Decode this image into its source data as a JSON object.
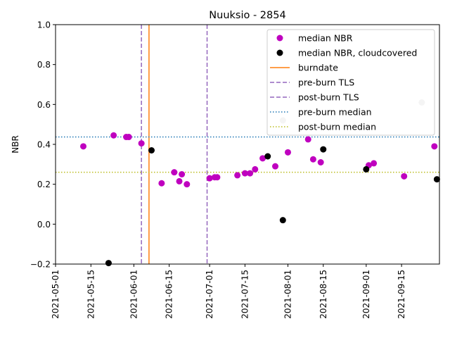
{
  "chart_data": {
    "type": "scatter",
    "title": "Nuuksio - 2854",
    "xlabel": "",
    "ylabel": "NBR",
    "xlim": [
      "2021-05-01",
      "2021-09-30"
    ],
    "ylim": [
      -0.2,
      1.0
    ],
    "x_ticks": [
      "2021-05-01",
      "2021-05-15",
      "2021-06-01",
      "2021-06-15",
      "2021-07-01",
      "2021-07-15",
      "2021-08-01",
      "2021-08-15",
      "2021-09-01",
      "2021-09-15"
    ],
    "y_ticks": [
      "−0.2",
      "0.0",
      "0.2",
      "0.4",
      "0.6",
      "0.8",
      "1.0"
    ],
    "y_tick_values": [
      -0.2,
      0.0,
      0.2,
      0.4,
      0.6,
      0.8,
      1.0
    ],
    "grid": false,
    "legend_position": "top-right",
    "series": [
      {
        "name": "median NBR",
        "color": "#bf00bf",
        "points": [
          [
            "2021-05-12",
            0.39
          ],
          [
            "2021-05-24",
            0.445
          ],
          [
            "2021-05-29",
            0.437
          ],
          [
            "2021-05-30",
            0.437
          ],
          [
            "2021-06-04",
            0.405
          ],
          [
            "2021-06-12",
            0.205
          ],
          [
            "2021-06-17",
            0.26
          ],
          [
            "2021-06-19",
            0.215
          ],
          [
            "2021-06-20",
            0.25
          ],
          [
            "2021-06-22",
            0.2
          ],
          [
            "2021-07-01",
            0.23
          ],
          [
            "2021-07-03",
            0.235
          ],
          [
            "2021-07-04",
            0.235
          ],
          [
            "2021-07-12",
            0.245
          ],
          [
            "2021-07-15",
            0.255
          ],
          [
            "2021-07-17",
            0.255
          ],
          [
            "2021-07-19",
            0.275
          ],
          [
            "2021-07-22",
            0.33
          ],
          [
            "2021-07-27",
            0.29
          ],
          [
            "2021-08-01",
            0.36
          ],
          [
            "2021-08-09",
            0.425
          ],
          [
            "2021-08-11",
            0.325
          ],
          [
            "2021-08-14",
            0.31
          ],
          [
            "2021-09-02",
            0.295
          ],
          [
            "2021-09-04",
            0.305
          ],
          [
            "2021-09-16",
            0.24
          ],
          [
            "2021-09-28",
            0.39
          ]
        ]
      },
      {
        "name": "median NBR, cloudcovered",
        "color": "#000000",
        "points": [
          [
            "2021-05-22",
            -0.195
          ],
          [
            "2021-06-08",
            0.37
          ],
          [
            "2021-07-24",
            0.34
          ],
          [
            "2021-07-30",
            0.02
          ],
          [
            "2021-08-15",
            0.375
          ],
          [
            "2021-09-01",
            0.275
          ],
          [
            "2021-09-29",
            0.225
          ]
        ]
      },
      {
        "name": "",
        "color": "#c8c8c8",
        "points": [
          [
            "2021-07-30",
            0.52
          ],
          [
            "2021-09-23",
            0.61
          ]
        ]
      }
    ],
    "lines": [
      {
        "name": "burndate",
        "orientation": "vertical",
        "value": "2021-06-07",
        "color": "#ff7f0e",
        "style": "solid"
      },
      {
        "name": "pre-burn TLS",
        "orientation": "vertical",
        "value": "2021-06-04",
        "color": "#9467bd",
        "style": "dashed"
      },
      {
        "name": "post-burn TLS",
        "orientation": "vertical",
        "value": "2021-06-30",
        "color": "#9467bd",
        "style": "dashed"
      },
      {
        "name": "pre-burn median",
        "orientation": "horizontal",
        "value": 0.437,
        "color": "#1f77b4",
        "style": "dotted"
      },
      {
        "name": "post-burn median",
        "orientation": "horizontal",
        "value": 0.26,
        "color": "#bcbd22",
        "style": "dotted"
      }
    ]
  }
}
